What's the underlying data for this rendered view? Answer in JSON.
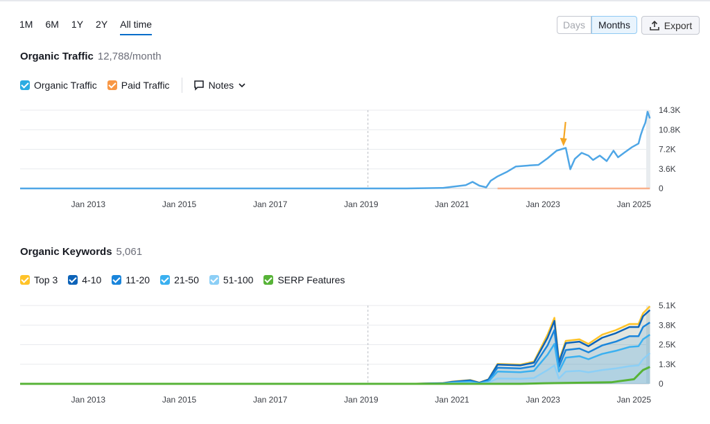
{
  "range_tabs": [
    "1M",
    "6M",
    "1Y",
    "2Y",
    "All time"
  ],
  "active_range": "All time",
  "granularity": {
    "days_label": "Days",
    "months_label": "Months",
    "active": "Months"
  },
  "export_label": "Export",
  "traffic": {
    "title": "Organic Traffic",
    "value": "12,788/month",
    "legend": [
      {
        "label": "Organic Traffic",
        "color": "#2bace2"
      },
      {
        "label": "Paid Traffic",
        "color": "#f89745"
      }
    ],
    "notes_label": "Notes"
  },
  "keywords": {
    "title": "Organic Keywords",
    "value": "5,061",
    "legend": [
      {
        "label": "Top 3",
        "color": "#ffc329"
      },
      {
        "label": "4-10",
        "color": "#0d63b8"
      },
      {
        "label": "11-20",
        "color": "#1a85db"
      },
      {
        "label": "21-50",
        "color": "#3ab0f0"
      },
      {
        "label": "51-100",
        "color": "#8ccff6"
      },
      {
        "label": "SERP Features",
        "color": "#57b337"
      }
    ]
  },
  "chart_data": [
    {
      "type": "line",
      "title": "Organic Traffic",
      "x_tick_labels": [
        "Jan 2013",
        "Jan 2015",
        "Jan 2017",
        "Jan 2019",
        "Jan 2021",
        "Jan 2023",
        "Jan 2025"
      ],
      "y_tick_labels": [
        "14.3K",
        "10.8K",
        "7.2K",
        "3.6K",
        "0"
      ],
      "ylim": [
        0,
        14300
      ],
      "xlim": [
        2011.5,
        2025.3
      ],
      "series": [
        {
          "name": "Organic Traffic",
          "color": "#4ea6e6",
          "points": [
            [
              2011.5,
              0
            ],
            [
              2020.0,
              0
            ],
            [
              2020.8,
              100
            ],
            [
              2021.0,
              300
            ],
            [
              2021.3,
              600
            ],
            [
              2021.45,
              1200
            ],
            [
              2021.6,
              500
            ],
            [
              2021.75,
              200
            ],
            [
              2021.85,
              1400
            ],
            [
              2022.0,
              2200
            ],
            [
              2022.2,
              3000
            ],
            [
              2022.4,
              4000
            ],
            [
              2022.7,
              4200
            ],
            [
              2022.9,
              4300
            ],
            [
              2023.1,
              5500
            ],
            [
              2023.3,
              6900
            ],
            [
              2023.5,
              7400
            ],
            [
              2023.6,
              3500
            ],
            [
              2023.7,
              5400
            ],
            [
              2023.85,
              6500
            ],
            [
              2024.0,
              6000
            ],
            [
              2024.1,
              5200
            ],
            [
              2024.25,
              6000
            ],
            [
              2024.4,
              5000
            ],
            [
              2024.55,
              6900
            ],
            [
              2024.65,
              5700
            ],
            [
              2024.8,
              6600
            ],
            [
              2024.95,
              7500
            ],
            [
              2025.1,
              8200
            ],
            [
              2025.15,
              9800
            ],
            [
              2025.2,
              11000
            ],
            [
              2025.25,
              12000
            ],
            [
              2025.3,
              14000
            ],
            [
              2025.38,
              12800
            ]
          ]
        },
        {
          "name": "Paid Traffic",
          "color": "#f9b08a",
          "points": [
            [
              2022.0,
              0
            ],
            [
              2025.38,
              0
            ]
          ]
        }
      ],
      "annotation": {
        "x": 2023.45,
        "label": ""
      }
    },
    {
      "type": "area",
      "title": "Organic Keywords",
      "x_tick_labels": [
        "Jan 2013",
        "Jan 2015",
        "Jan 2017",
        "Jan 2019",
        "Jan 2021",
        "Jan 2023",
        "Jan 2025"
      ],
      "y_tick_labels": [
        "5.1K",
        "3.8K",
        "2.5K",
        "1.3K",
        "0"
      ],
      "ylim": [
        0,
        5100
      ],
      "xlim": [
        2011.5,
        2025.3
      ],
      "series": [
        {
          "name": "Top 3",
          "color": "#ffc329",
          "points": [
            [
              2011.5,
              0
            ],
            [
              2020.0,
              0
            ],
            [
              2020.8,
              50
            ],
            [
              2021.0,
              150
            ],
            [
              2021.4,
              250
            ],
            [
              2021.6,
              80
            ],
            [
              2021.8,
              300
            ],
            [
              2022.0,
              1300
            ],
            [
              2022.5,
              1250
            ],
            [
              2022.8,
              1450
            ],
            [
              2023.1,
              3200
            ],
            [
              2023.25,
              4300
            ],
            [
              2023.35,
              1500
            ],
            [
              2023.5,
              2800
            ],
            [
              2023.8,
              2900
            ],
            [
              2024.0,
              2600
            ],
            [
              2024.3,
              3200
            ],
            [
              2024.6,
              3500
            ],
            [
              2024.9,
              3900
            ],
            [
              2025.1,
              3900
            ],
            [
              2025.2,
              4600
            ],
            [
              2025.38,
              5050
            ]
          ]
        },
        {
          "name": "4-10",
          "color": "#0d63b8",
          "points": [
            [
              2011.5,
              0
            ],
            [
              2020.0,
              0
            ],
            [
              2020.8,
              40
            ],
            [
              2021.0,
              130
            ],
            [
              2021.4,
              230
            ],
            [
              2021.6,
              70
            ],
            [
              2021.8,
              280
            ],
            [
              2022.0,
              1250
            ],
            [
              2022.5,
              1200
            ],
            [
              2022.8,
              1380
            ],
            [
              2023.1,
              3000
            ],
            [
              2023.25,
              4100
            ],
            [
              2023.35,
              1400
            ],
            [
              2023.5,
              2650
            ],
            [
              2023.8,
              2750
            ],
            [
              2024.0,
              2450
            ],
            [
              2024.3,
              3000
            ],
            [
              2024.6,
              3300
            ],
            [
              2024.9,
              3700
            ],
            [
              2025.1,
              3700
            ],
            [
              2025.2,
              4400
            ],
            [
              2025.38,
              4800
            ]
          ]
        },
        {
          "name": "11-20",
          "color": "#1a85db",
          "points": [
            [
              2011.5,
              0
            ],
            [
              2020.0,
              0
            ],
            [
              2020.8,
              30
            ],
            [
              2021.0,
              100
            ],
            [
              2021.4,
              180
            ],
            [
              2021.6,
              50
            ],
            [
              2021.8,
              220
            ],
            [
              2022.0,
              1050
            ],
            [
              2022.5,
              1000
            ],
            [
              2022.8,
              1150
            ],
            [
              2023.1,
              2500
            ],
            [
              2023.25,
              3500
            ],
            [
              2023.35,
              1100
            ],
            [
              2023.5,
              2200
            ],
            [
              2023.8,
              2300
            ],
            [
              2024.0,
              2050
            ],
            [
              2024.3,
              2500
            ],
            [
              2024.6,
              2750
            ],
            [
              2024.9,
              3100
            ],
            [
              2025.1,
              3100
            ],
            [
              2025.2,
              3700
            ],
            [
              2025.38,
              4000
            ]
          ]
        },
        {
          "name": "21-50",
          "color": "#3ab0f0",
          "points": [
            [
              2011.5,
              0
            ],
            [
              2020.0,
              0
            ],
            [
              2020.8,
              20
            ],
            [
              2021.0,
              70
            ],
            [
              2021.4,
              120
            ],
            [
              2021.6,
              30
            ],
            [
              2021.8,
              150
            ],
            [
              2022.0,
              800
            ],
            [
              2022.5,
              760
            ],
            [
              2022.8,
              850
            ],
            [
              2023.1,
              1900
            ],
            [
              2023.25,
              2600
            ],
            [
              2023.35,
              800
            ],
            [
              2023.5,
              1700
            ],
            [
              2023.8,
              1800
            ],
            [
              2024.0,
              1600
            ],
            [
              2024.3,
              1950
            ],
            [
              2024.6,
              2150
            ],
            [
              2024.9,
              2400
            ],
            [
              2025.1,
              2450
            ],
            [
              2025.2,
              2900
            ],
            [
              2025.38,
              3200
            ]
          ]
        },
        {
          "name": "51-100",
          "color": "#8ccff6",
          "points": [
            [
              2011.5,
              0
            ],
            [
              2020.0,
              0
            ],
            [
              2020.8,
              10
            ],
            [
              2021.0,
              30
            ],
            [
              2021.4,
              60
            ],
            [
              2021.6,
              15
            ],
            [
              2021.8,
              80
            ],
            [
              2022.0,
              350
            ],
            [
              2022.5,
              330
            ],
            [
              2022.8,
              380
            ],
            [
              2023.1,
              900
            ],
            [
              2023.25,
              1200
            ],
            [
              2023.35,
              350
            ],
            [
              2023.5,
              800
            ],
            [
              2023.8,
              850
            ],
            [
              2024.0,
              750
            ],
            [
              2024.3,
              900
            ],
            [
              2024.6,
              1000
            ],
            [
              2024.9,
              1150
            ],
            [
              2025.1,
              1200
            ],
            [
              2025.2,
              1600
            ],
            [
              2025.38,
              2000
            ]
          ]
        },
        {
          "name": "SERP Features",
          "color": "#57b337",
          "points": [
            [
              2011.5,
              0
            ],
            [
              2022.5,
              0
            ],
            [
              2023.0,
              30
            ],
            [
              2023.5,
              60
            ],
            [
              2024.0,
              80
            ],
            [
              2024.5,
              100
            ],
            [
              2025.0,
              300
            ],
            [
              2025.2,
              900
            ],
            [
              2025.38,
              1100
            ]
          ]
        }
      ]
    }
  ]
}
